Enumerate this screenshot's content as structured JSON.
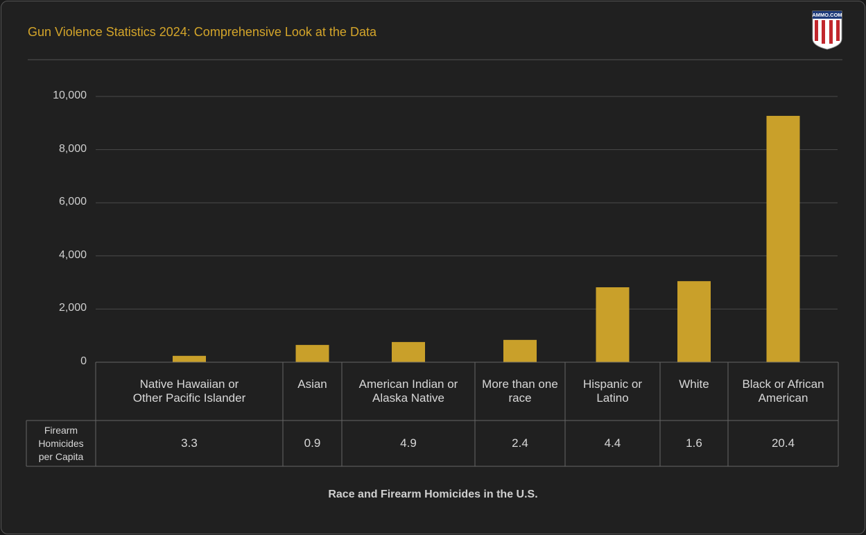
{
  "logo_text": "AMMO.COM",
  "chart_data": {
    "type": "bar",
    "title": "Gun Violence Statistics 2024: Comprehensive Look at the Data",
    "x_label": "Race and Firearm Homicides in the U.S.",
    "categories": [
      "Native Hawaiian or Other Pacific Islander",
      "Asian",
      "American Indian or Alaska Native",
      "More than one race",
      "Hispanic or Latino",
      "White",
      "Black or African American"
    ],
    "values": [
      240,
      650,
      760,
      840,
      2820,
      3050,
      9270
    ],
    "color": "#c9a02a",
    "ylim": [
      0,
      10000
    ],
    "yticks": [
      0,
      {
        "value": 2000,
        "label": "2,000"
      },
      {
        "value": 4000,
        "label": "4,000"
      },
      {
        "value": 6000,
        "label": "6,000"
      },
      {
        "value": 8000,
        "label": "8,000"
      },
      {
        "value": 10000,
        "label": "10,000"
      }
    ],
    "grid": true,
    "table_rows": [
      {
        "label": "Firearm Homicides per Capita",
        "values": [
          3.3,
          0.9,
          4.9,
          2.4,
          4.4,
          1.6,
          20.4
        ]
      }
    ]
  }
}
